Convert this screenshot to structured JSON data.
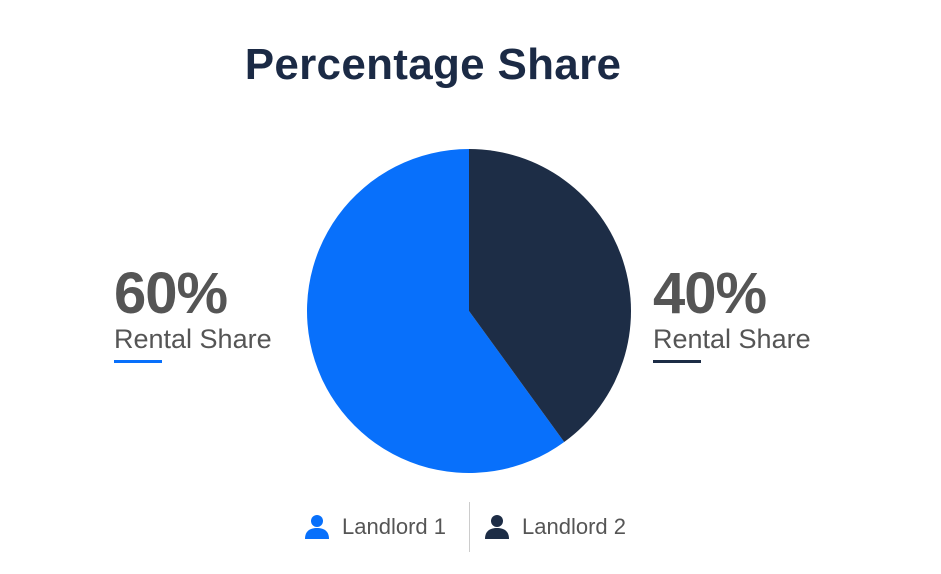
{
  "chart_data": {
    "type": "pie",
    "title": "Percentage Share",
    "categories": [
      "Landlord 1",
      "Landlord 2"
    ],
    "values": [
      60,
      40
    ],
    "colors": [
      "#0870fb",
      "#1d2d46"
    ],
    "labels": [
      {
        "value": "60%",
        "caption": "Rental Share",
        "side": "left"
      },
      {
        "value": "40%",
        "caption": "Rental Share",
        "side": "right"
      }
    ],
    "legend": {
      "placement": "bottom",
      "items": [
        {
          "label": "Landlord 1",
          "icon": "person-icon",
          "color": "#0870fb"
        },
        {
          "label": "Landlord 2",
          "icon": "person-icon",
          "color": "#1d2d46"
        }
      ]
    }
  }
}
